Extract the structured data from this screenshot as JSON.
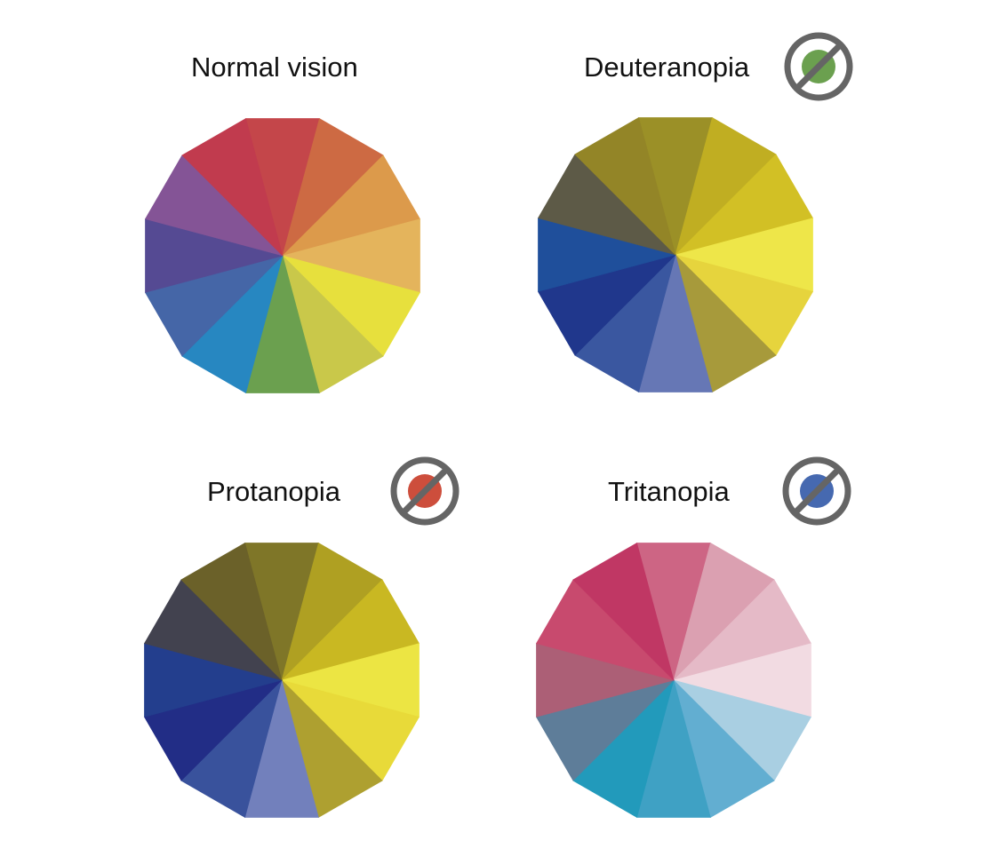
{
  "panels": [
    {
      "id": "normal",
      "title": "Normal vision",
      "badge": null,
      "colors": [
        "#c4464a",
        "#cd6a43",
        "#dc9a4b",
        "#e4b45c",
        "#e7e03d",
        "#c9c84a",
        "#6ba04f",
        "#2787c1",
        "#4566a7",
        "#554a93",
        "#845496",
        "#c13b4e"
      ]
    },
    {
      "id": "deut",
      "title": "Deuteranopia",
      "badge": {
        "icon": "no-green-icon",
        "dot_color": "#6ba04f"
      },
      "colors": [
        "#9b9027",
        "#c0ae22",
        "#d2c025",
        "#eee649",
        "#e6d43d",
        "#a79a3b",
        "#6677b5",
        "#3a57a0",
        "#20378c",
        "#1f4f9b",
        "#5d5a47",
        "#938527"
      ]
    },
    {
      "id": "prot",
      "title": "Protanopia",
      "badge": {
        "icon": "no-red-icon",
        "dot_color": "#cd4e3c"
      },
      "colors": [
        "#7f7628",
        "#afa022",
        "#c9b822",
        "#ece543",
        "#e8da39",
        "#aea030",
        "#7280bc",
        "#39529c",
        "#222d86",
        "#233e8d",
        "#42424f",
        "#6b6129"
      ]
    },
    {
      "id": "trit",
      "title": "Tritanopia",
      "badge": {
        "icon": "no-blue-icon",
        "dot_color": "#4669b0"
      },
      "colors": [
        "#cd6584",
        "#dba0b1",
        "#e5bac7",
        "#f2dbe2",
        "#a9cfe2",
        "#62aed1",
        "#3fa1c4",
        "#229abb",
        "#5e7d99",
        "#ac5f76",
        "#c84a6e",
        "#c03764"
      ]
    }
  ]
}
